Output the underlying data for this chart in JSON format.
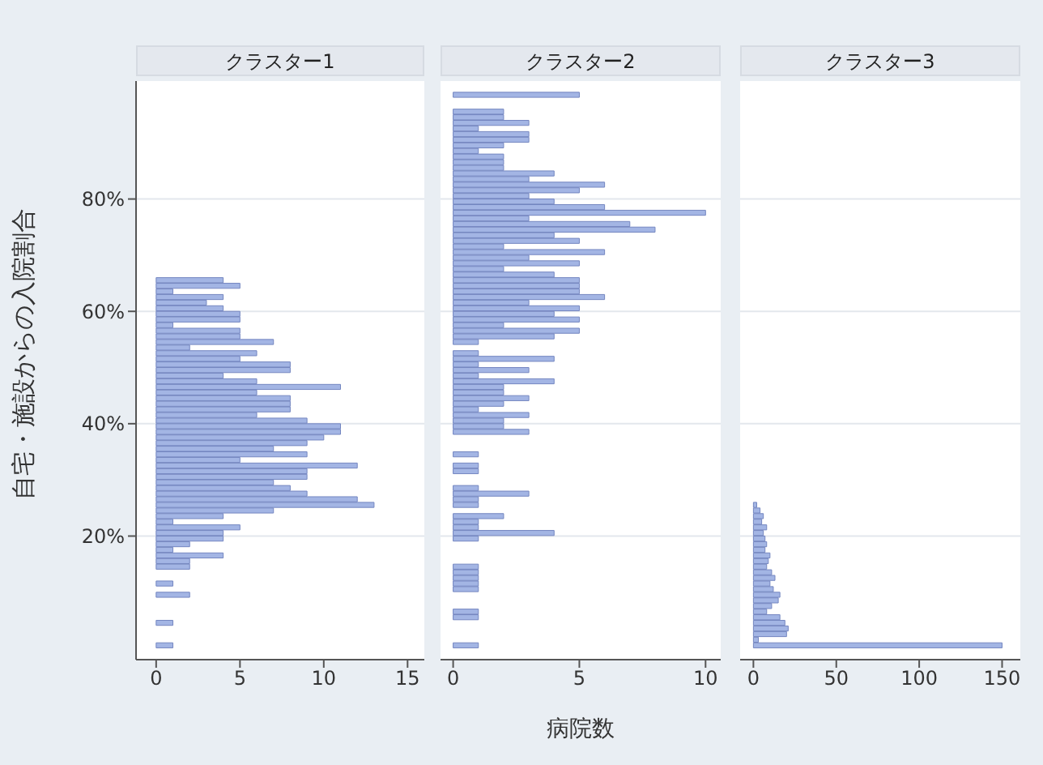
{
  "chart_data": [
    {
      "type": "histogram",
      "orientation": "horizontal",
      "title": "クラスター1",
      "ylabel": "自宅・施設からの入院割合",
      "color": "#a3b5e4",
      "grid": "y",
      "bins": [
        0,
        1,
        2,
        3,
        4,
        5,
        6,
        7,
        8,
        9,
        10,
        11,
        12,
        13,
        14,
        15,
        16,
        17,
        18,
        19,
        20,
        21,
        22,
        23,
        24,
        25,
        26,
        27,
        28,
        29,
        30,
        31,
        32,
        33,
        34,
        35,
        36,
        37,
        38,
        39,
        40,
        41,
        42,
        43,
        44,
        45,
        46,
        47,
        48,
        49,
        50,
        51,
        52,
        53,
        54,
        55,
        56,
        57,
        58,
        59,
        60,
        61,
        62,
        63,
        64,
        65,
        66,
        67,
        68,
        69,
        70,
        71,
        72,
        73,
        74,
        75,
        76,
        77,
        78,
        79,
        80,
        81,
        82,
        83,
        84,
        85,
        86,
        87,
        88,
        89,
        90,
        91,
        92,
        93,
        94,
        95,
        96,
        97,
        98,
        99,
        100
      ],
      "values": [
        1,
        0,
        0,
        0,
        1,
        0,
        0,
        0,
        0,
        2,
        0,
        1,
        0,
        0,
        2,
        2,
        4,
        1,
        2,
        4,
        4,
        5,
        1,
        4,
        7,
        13,
        12,
        9,
        8,
        7,
        9,
        9,
        12,
        5,
        9,
        7,
        9,
        10,
        11,
        11,
        9,
        6,
        8,
        8,
        8,
        6,
        11,
        6,
        4,
        8,
        8,
        5,
        6,
        2,
        7,
        5,
        5,
        1,
        5,
        5,
        4,
        3,
        4,
        1,
        5,
        4,
        0,
        0,
        0,
        0,
        0,
        0,
        0,
        0,
        0,
        0,
        0,
        0,
        0,
        0,
        0,
        0,
        0,
        0,
        0,
        0,
        0,
        0,
        0,
        0,
        0,
        0,
        0,
        0,
        0,
        0,
        0,
        0,
        0,
        0
      ],
      "xlim": [
        -1.2,
        16
      ],
      "xticks": [
        0,
        5,
        10,
        15
      ],
      "ylim": [
        -2,
        101
      ],
      "yticks": [
        {
          "value": 20,
          "label": "20%"
        },
        {
          "value": 40,
          "label": "40%"
        },
        {
          "value": 60,
          "label": "60%"
        },
        {
          "value": 80,
          "label": "80%"
        }
      ]
    },
    {
      "type": "histogram",
      "orientation": "horizontal",
      "title": "クラスター2",
      "xlabel": "病院数",
      "color": "#a3b5e4",
      "grid": "y",
      "tick_labels": "x",
      "bins": [
        0,
        1,
        2,
        3,
        4,
        5,
        6,
        7,
        8,
        9,
        10,
        11,
        12,
        13,
        14,
        15,
        16,
        17,
        18,
        19,
        20,
        21,
        22,
        23,
        24,
        25,
        26,
        27,
        28,
        29,
        30,
        31,
        32,
        33,
        34,
        35,
        36,
        37,
        38,
        39,
        40,
        41,
        42,
        43,
        44,
        45,
        46,
        47,
        48,
        49,
        50,
        51,
        52,
        53,
        54,
        55,
        56,
        57,
        58,
        59,
        60,
        61,
        62,
        63,
        64,
        65,
        66,
        67,
        68,
        69,
        70,
        71,
        72,
        73,
        74,
        75,
        76,
        77,
        78,
        79,
        80,
        81,
        82,
        83,
        84,
        85,
        86,
        87,
        88,
        89,
        90,
        91,
        92,
        93,
        94,
        95,
        96,
        97,
        98,
        99,
        100
      ],
      "values": [
        1,
        0,
        0,
        0,
        0,
        1,
        1,
        0,
        0,
        0,
        1,
        1,
        1,
        1,
        1,
        0,
        0,
        0,
        0,
        1,
        4,
        1,
        1,
        2,
        0,
        1,
        1,
        3,
        1,
        0,
        0,
        1,
        1,
        0,
        1,
        0,
        0,
        0,
        3,
        2,
        2,
        3,
        1,
        2,
        3,
        2,
        2,
        4,
        1,
        3,
        1,
        4,
        1,
        0,
        1,
        4,
        5,
        2,
        5,
        4,
        5,
        3,
        6,
        5,
        5,
        5,
        4,
        2,
        5,
        3,
        6,
        2,
        5,
        4,
        8,
        7,
        3,
        10,
        6,
        4,
        3,
        5,
        6,
        3,
        4,
        2,
        2,
        2,
        1,
        2,
        3,
        3,
        1,
        3,
        2,
        2,
        0,
        0,
        5,
        0
      ],
      "xlim": [
        -0.5,
        10.6
      ],
      "xticks": [
        0,
        5,
        10
      ],
      "ylim": [
        -2,
        101
      ],
      "yticks": [
        20,
        40,
        60,
        80
      ]
    },
    {
      "type": "histogram",
      "orientation": "horizontal",
      "title": "クラスター3",
      "color": "#a3b5e4",
      "grid": "y",
      "tick_labels": "x",
      "bins": [
        0,
        1,
        2,
        3,
        4,
        5,
        6,
        7,
        8,
        9,
        10,
        11,
        12,
        13,
        14,
        15,
        16,
        17,
        18,
        19,
        20,
        21,
        22,
        23,
        24,
        25,
        26,
        27,
        28,
        29,
        30,
        31,
        32,
        33,
        34,
        35,
        36,
        37,
        38,
        39,
        40,
        41,
        42,
        43,
        44,
        45,
        46,
        47,
        48,
        49,
        50,
        51,
        52,
        53,
        54,
        55,
        56,
        57,
        58,
        59,
        60,
        61,
        62,
        63,
        64,
        65,
        66,
        67,
        68,
        69,
        70,
        71,
        72,
        73,
        74,
        75,
        76,
        77,
        78,
        79,
        80,
        81,
        82,
        83,
        84,
        85,
        86,
        87,
        88,
        89,
        90,
        91,
        92,
        93,
        94,
        95,
        96,
        97,
        98,
        99,
        100
      ],
      "values": [
        150,
        3,
        20,
        21,
        19,
        16,
        8,
        11,
        15,
        16,
        12,
        10,
        13,
        11,
        8,
        9,
        10,
        7,
        8,
        7,
        6,
        8,
        5,
        6,
        4,
        2,
        0,
        0,
        0,
        0,
        0,
        0,
        0,
        0,
        0,
        0,
        0,
        0,
        0,
        0,
        0,
        0,
        0,
        0,
        0,
        0,
        0,
        0,
        0,
        0,
        0,
        0,
        0,
        0,
        0,
        0,
        0,
        0,
        0,
        0,
        0,
        0,
        0,
        0,
        0,
        0,
        0,
        0,
        0,
        0,
        0,
        0,
        0,
        0,
        0,
        0,
        0,
        0,
        0,
        0,
        0,
        0,
        0,
        0,
        0,
        0,
        0,
        0,
        0,
        0,
        0,
        0,
        0,
        0,
        0,
        0,
        0,
        0,
        0,
        0
      ],
      "xlim": [
        -8,
        161
      ],
      "xticks": [
        0,
        50,
        100,
        150
      ],
      "ylim": [
        -2,
        101
      ],
      "yticks": [
        20,
        40,
        60,
        80
      ]
    }
  ]
}
